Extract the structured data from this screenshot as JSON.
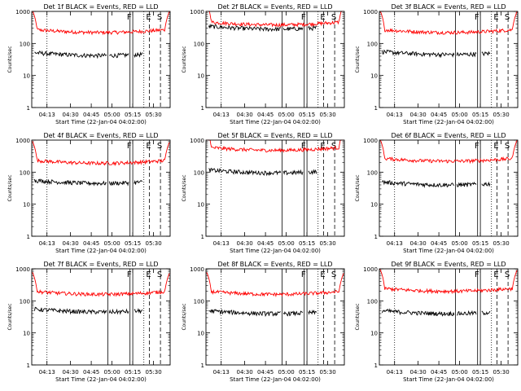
{
  "chart_data": {
    "type": "line",
    "scale_y": "log",
    "ylim": [
      1,
      1000
    ],
    "y_ticks": [
      1,
      10,
      100,
      1000
    ],
    "y_tick_labels": [
      "1",
      "10",
      "100",
      "1000"
    ],
    "x_range_minutes": [
      0,
      100
    ],
    "x_tick_minutes": [
      11,
      28,
      43,
      58,
      73,
      88
    ],
    "x_tick_labels": [
      "04:13",
      "04:30",
      "04:45",
      "05:00",
      "05:15",
      "05:30"
    ],
    "ylabel": "Counts/sec",
    "xlabel": "Start Time (22-Jan-04 04:02:00)",
    "series_colors": {
      "events": "#000000",
      "lld": "#ff0000"
    },
    "markers": [
      {
        "label": "",
        "minute": 11,
        "style": "dotted"
      },
      {
        "label": "",
        "minute": 55,
        "style": "solid"
      },
      {
        "label": "F",
        "minute": 71,
        "style": "solid"
      },
      {
        "label": "",
        "minute": 73,
        "style": "solid"
      },
      {
        "label": "",
        "minute": 81,
        "style": "dotted"
      },
      {
        "label": "E",
        "minute": 85,
        "style": "dashed"
      },
      {
        "label": "S",
        "minute": 93,
        "style": "dashed"
      }
    ],
    "panels": [
      {
        "title": "Det 1f BLACK = Events, RED = LLD",
        "lld_level": 220,
        "events_level": 42
      },
      {
        "title": "Det 2f BLACK = Events, RED = LLD",
        "lld_level": 380,
        "events_level": 280
      },
      {
        "title": "Det 3f BLACK = Events, RED = LLD",
        "lld_level": 220,
        "events_level": 45
      },
      {
        "title": "Det 4f BLACK = Events, RED = LLD",
        "lld_level": 190,
        "events_level": 45
      },
      {
        "title": "Det 5f BLACK = Events, RED = LLD",
        "lld_level": 480,
        "events_level": 95
      },
      {
        "title": "Det 6f BLACK = Events, RED = LLD",
        "lld_level": 220,
        "events_level": 40
      },
      {
        "title": "Det 7f BLACK = Events, RED = LLD",
        "lld_level": 160,
        "events_level": 45
      },
      {
        "title": "Det 8f BLACK = Events, RED = LLD",
        "lld_level": 160,
        "events_level": 40
      },
      {
        "title": "Det 9f BLACK = Events, RED = LLD",
        "lld_level": 200,
        "events_level": 40
      }
    ]
  }
}
